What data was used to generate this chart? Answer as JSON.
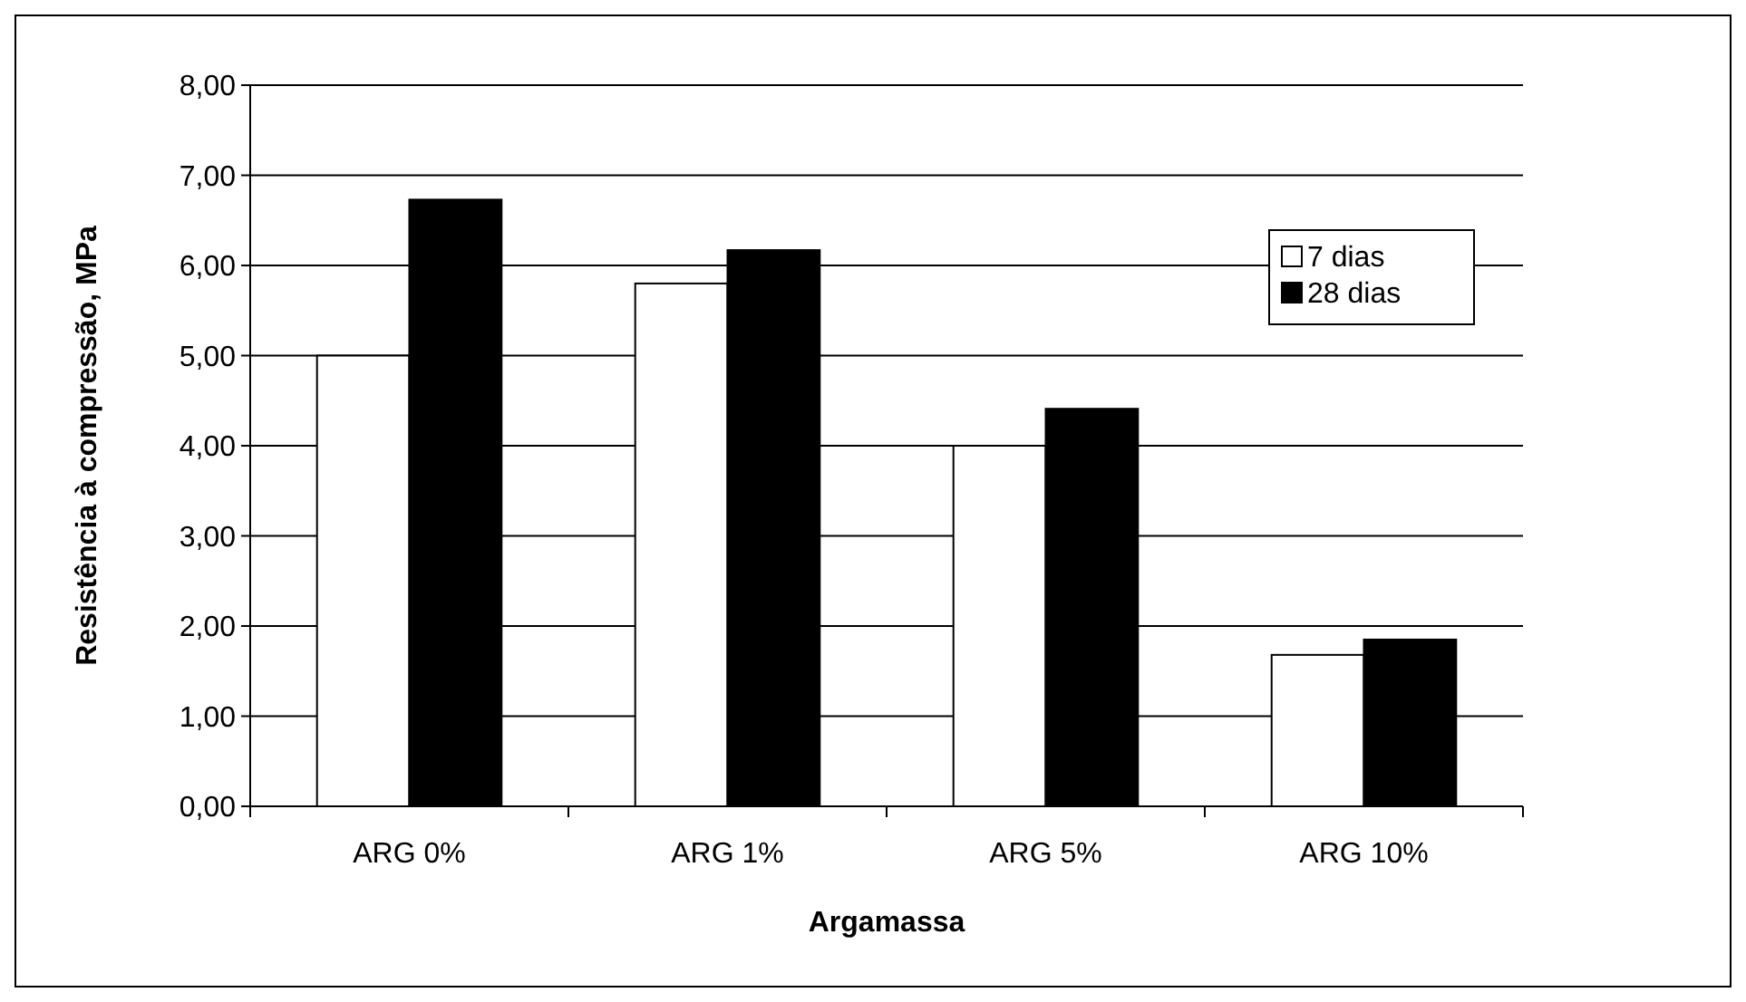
{
  "chart_data": {
    "type": "bar",
    "xlabel": "Argamassa",
    "ylabel": "Resistência à compressão, MPa",
    "categories": [
      "ARG 0%",
      "ARG 1%",
      "ARG 5%",
      "ARG 10%"
    ],
    "series": [
      {
        "name": "7 dias",
        "color": "#ffffff",
        "values": [
          5.0,
          5.8,
          4.0,
          1.68
        ]
      },
      {
        "name": "28 dias",
        "color": "#000000",
        "values": [
          6.73,
          6.17,
          4.41,
          1.85
        ]
      }
    ],
    "ylim": [
      0,
      8
    ],
    "yticks": [
      {
        "value": 0,
        "label": "0,00"
      },
      {
        "value": 1,
        "label": "1,00"
      },
      {
        "value": 2,
        "label": "2,00"
      },
      {
        "value": 3,
        "label": "3,00"
      },
      {
        "value": 4,
        "label": "4,00"
      },
      {
        "value": 5,
        "label": "5,00"
      },
      {
        "value": 6,
        "label": "6,00"
      },
      {
        "value": 7,
        "label": "7,00"
      },
      {
        "value": 8,
        "label": "8,00"
      }
    ],
    "grid": "y",
    "legend": "top right"
  }
}
